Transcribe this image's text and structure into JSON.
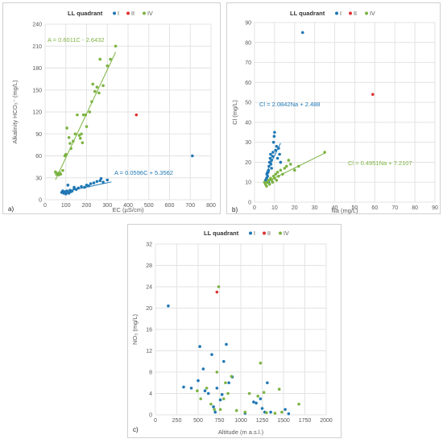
{
  "colors": {
    "quadrant_I": "#1f77b4",
    "quadrant_II": "#e03030",
    "quadrant_IV": "#7cb342",
    "grid": "#e3e3e3",
    "axis_text": "#595959"
  },
  "chart_data": [
    {
      "panel_label": "a)",
      "type": "scatter",
      "title": "LL quadrant",
      "legend": [
        "I",
        "II",
        "IV"
      ],
      "legend_position": "top",
      "xlabel": "EC (µS/cm)",
      "ylabel": "Alkalinity HCO₃⁻ (mg/L)",
      "xlim": [
        0,
        800
      ],
      "ylim": [
        0,
        240
      ],
      "xticks": [
        0,
        100,
        200,
        300,
        400,
        500,
        600,
        700,
        800
      ],
      "yticks": [
        0,
        30,
        60,
        90,
        120,
        150,
        180,
        210,
        240
      ],
      "grid": true,
      "series": [
        {
          "name": "I",
          "color_key": "quadrant_I",
          "points": [
            [
              80,
              10
            ],
            [
              85,
              12
            ],
            [
              90,
              9
            ],
            [
              95,
              11
            ],
            [
              100,
              8
            ],
            [
              105,
              12
            ],
            [
              110,
              10
            ],
            [
              115,
              9
            ],
            [
              120,
              13
            ],
            [
              125,
              11
            ],
            [
              130,
              12
            ],
            [
              140,
              15
            ],
            [
              150,
              14
            ],
            [
              160,
              16
            ],
            [
              175,
              18
            ],
            [
              190,
              17
            ],
            [
              200,
              20
            ],
            [
              210,
              19
            ],
            [
              220,
              22
            ],
            [
              235,
              23
            ],
            [
              250,
              25
            ],
            [
              265,
              26
            ],
            [
              280,
              24
            ],
            [
              300,
              27
            ],
            [
              110,
              20
            ],
            [
              140,
              17
            ],
            [
              270,
              29
            ],
            [
              710,
              60
            ]
          ]
        },
        {
          "name": "II",
          "color_key": "quadrant_II",
          "points": [
            [
              440,
              116
            ]
          ]
        },
        {
          "name": "IV",
          "color_key": "quadrant_IV",
          "points": [
            [
              50,
              38
            ],
            [
              55,
              35
            ],
            [
              60,
              36
            ],
            [
              65,
              34
            ],
            [
              70,
              37
            ],
            [
              75,
              35
            ],
            [
              85,
              40
            ],
            [
              95,
              60
            ],
            [
              100,
              62
            ],
            [
              105,
              98
            ],
            [
              115,
              85
            ],
            [
              120,
              77
            ],
            [
              125,
              70
            ],
            [
              135,
              80
            ],
            [
              145,
              90
            ],
            [
              155,
              116
            ],
            [
              165,
              88
            ],
            [
              170,
              84
            ],
            [
              175,
              90
            ],
            [
              180,
              78
            ],
            [
              185,
              116
            ],
            [
              195,
              116
            ],
            [
              200,
              100
            ],
            [
              215,
              120
            ],
            [
              225,
              134
            ],
            [
              230,
              158
            ],
            [
              240,
              148
            ],
            [
              250,
              154
            ],
            [
              260,
              146
            ],
            [
              265,
              192
            ],
            [
              280,
              156
            ],
            [
              300,
              183
            ],
            [
              315,
              192
            ],
            [
              340,
              210
            ]
          ]
        }
      ],
      "trendlines": [
        {
          "label": "A = 0.6011C - 2.6432",
          "color_key": "quadrant_IV",
          "slope": 0.6011,
          "intercept": -2.6432,
          "x_range": [
            50,
            340
          ]
        },
        {
          "label": "A = 0.0596C + 5.3562",
          "color_key": "quadrant_I",
          "slope": 0.0596,
          "intercept": 5.3562,
          "x_range": [
            75,
            320
          ]
        }
      ]
    },
    {
      "panel_label": "b)",
      "type": "scatter",
      "title": "LL quadrant",
      "legend": [
        "I",
        "II",
        "IV"
      ],
      "legend_position": "top",
      "xlabel": "Na (mg/L)",
      "ylabel": "Cl (mg/L)",
      "xlim": [
        0,
        90
      ],
      "ylim": [
        0,
        90
      ],
      "xticks": [
        0,
        10,
        20,
        30,
        40,
        50,
        60,
        70,
        80,
        90
      ],
      "yticks": [
        0,
        10,
        20,
        30,
        40,
        50,
        60,
        70,
        80,
        90
      ],
      "grid": true,
      "series": [
        {
          "name": "I",
          "color_key": "quadrant_I",
          "points": [
            [
              5.5,
              11
            ],
            [
              6,
              12
            ],
            [
              6.2,
              14
            ],
            [
              6.5,
              13
            ],
            [
              6.8,
              15
            ],
            [
              7,
              16
            ],
            [
              7.2,
              18
            ],
            [
              7.5,
              20
            ],
            [
              7.8,
              22
            ],
            [
              8,
              24
            ],
            [
              8.2,
              19
            ],
            [
              8.5,
              21
            ],
            [
              9,
              23
            ],
            [
              9.2,
              25
            ],
            [
              9.5,
              30
            ],
            [
              9.8,
              33
            ],
            [
              10,
              35
            ],
            [
              10.5,
              26
            ],
            [
              11,
              28
            ],
            [
              11.5,
              22
            ],
            [
              12,
              27
            ],
            [
              12.5,
              24
            ],
            [
              13,
              20
            ],
            [
              7,
              10
            ],
            [
              8.5,
              17
            ],
            [
              24,
              85
            ]
          ]
        },
        {
          "name": "II",
          "color_key": "quadrant_II",
          "points": [
            [
              59,
              54
            ]
          ]
        },
        {
          "name": "IV",
          "color_key": "quadrant_IV",
          "points": [
            [
              5,
              10
            ],
            [
              5.5,
              9
            ],
            [
              6,
              8
            ],
            [
              6.5,
              10
            ],
            [
              7,
              11
            ],
            [
              7.5,
              9
            ],
            [
              8,
              12
            ],
            [
              8.5,
              11
            ],
            [
              9,
              10
            ],
            [
              9.5,
              13
            ],
            [
              10,
              12
            ],
            [
              10.5,
              14
            ],
            [
              11,
              11
            ],
            [
              11.5,
              15
            ],
            [
              12,
              13
            ],
            [
              13,
              16
            ],
            [
              14,
              14
            ],
            [
              15,
              17
            ],
            [
              16,
              18
            ],
            [
              17,
              21
            ],
            [
              18,
              19
            ],
            [
              20,
              16
            ],
            [
              22,
              18
            ],
            [
              35,
              25
            ]
          ]
        }
      ],
      "trendlines": [
        {
          "label": "Cl = 2.0842Na + 2.488",
          "color_key": "quadrant_I",
          "slope": 2.0842,
          "intercept": 2.488,
          "x_range": [
            5.5,
            13
          ]
        },
        {
          "label": "Cl = 0.4951Na + 7.2107",
          "color_key": "quadrant_IV",
          "slope": 0.4951,
          "intercept": 7.2107,
          "x_range": [
            5,
            35
          ]
        }
      ]
    },
    {
      "panel_label": "c)",
      "type": "scatter",
      "title": "LL quadrant",
      "legend": [
        "I",
        "II",
        "IV"
      ],
      "legend_position": "top",
      "xlabel": "Altitude (m a.s.l.)",
      "ylabel": "NO₃ (mg/L)",
      "xlim": [
        0,
        2000
      ],
      "ylim": [
        0,
        32
      ],
      "xticks": [
        0,
        250,
        500,
        750,
        1000,
        1250,
        1500,
        1750,
        2000
      ],
      "yticks": [
        0,
        4,
        8,
        12,
        16,
        20,
        24,
        28,
        32
      ],
      "grid": true,
      "series": [
        {
          "name": "I",
          "color_key": "quadrant_I",
          "points": [
            [
              150,
              20.4
            ],
            [
              330,
              5.2
            ],
            [
              420,
              5.0
            ],
            [
              500,
              6.4
            ],
            [
              520,
              12.8
            ],
            [
              560,
              8.6
            ],
            [
              580,
              4.5
            ],
            [
              620,
              4.0
            ],
            [
              660,
              11.3
            ],
            [
              680,
              1.5
            ],
            [
              700,
              0.5
            ],
            [
              720,
              5.0
            ],
            [
              760,
              2.8
            ],
            [
              780,
              3.8
            ],
            [
              800,
              10.0
            ],
            [
              830,
              13.2
            ],
            [
              860,
              6.0
            ],
            [
              900,
              7.1
            ],
            [
              1150,
              2.4
            ],
            [
              1180,
              2.2
            ],
            [
              1230,
              3.0
            ],
            [
              1250,
              1.2
            ],
            [
              1280,
              0.5
            ],
            [
              1310,
              6.0
            ],
            [
              1350,
              0.5
            ],
            [
              1520,
              1.0
            ],
            [
              1560,
              0.2
            ],
            [
              1050,
              0.3
            ]
          ]
        },
        {
          "name": "II",
          "color_key": "quadrant_II",
          "points": [
            [
              720,
              23.0
            ]
          ]
        },
        {
          "name": "IV",
          "color_key": "quadrant_IV",
          "points": [
            [
              490,
              4.5
            ],
            [
              530,
              3.0
            ],
            [
              600,
              5.0
            ],
            [
              650,
              2.0
            ],
            [
              690,
              1.0
            ],
            [
              720,
              8.0
            ],
            [
              740,
              24.0
            ],
            [
              760,
              1.0
            ],
            [
              800,
              3.0
            ],
            [
              820,
              6.0
            ],
            [
              850,
              4.0
            ],
            [
              890,
              7.2
            ],
            [
              950,
              0.8
            ],
            [
              1050,
              0.5
            ],
            [
              1100,
              4.0
            ],
            [
              1200,
              3.5
            ],
            [
              1230,
              9.7
            ],
            [
              1270,
              4.2
            ],
            [
              1300,
              0.4
            ],
            [
              1400,
              0.3
            ],
            [
              1450,
              4.8
            ],
            [
              1480,
              0.5
            ],
            [
              1680,
              2.0
            ]
          ]
        }
      ],
      "trendlines": []
    }
  ]
}
